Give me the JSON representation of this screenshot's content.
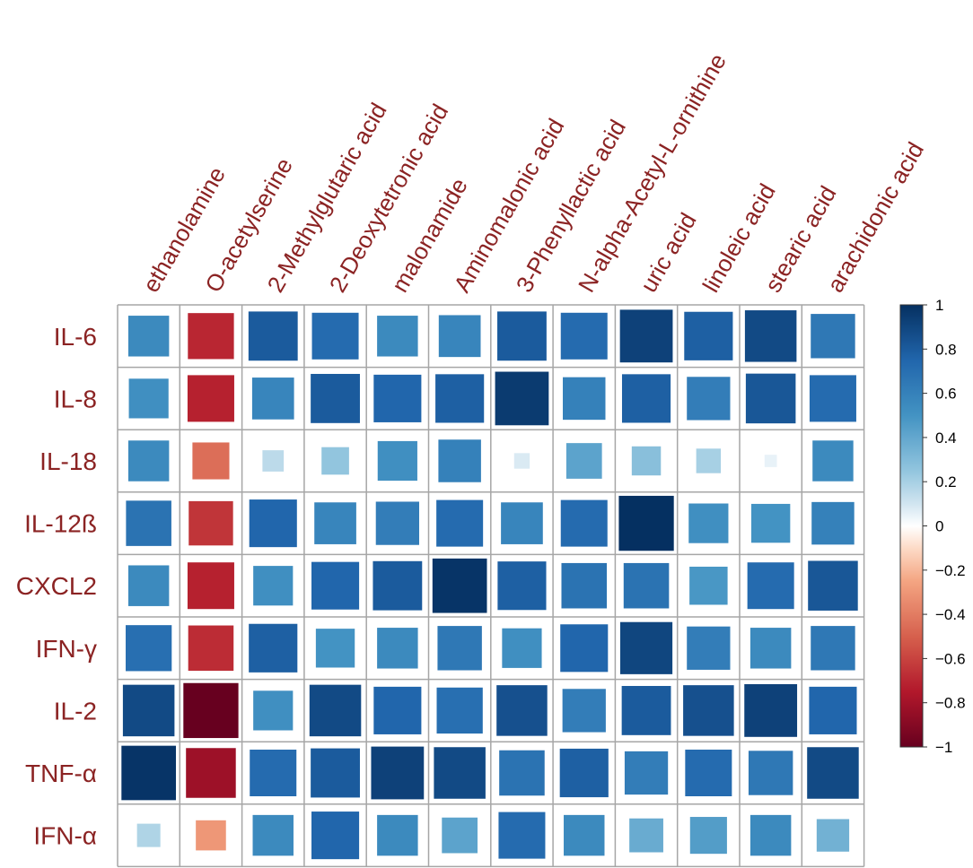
{
  "chart_data": {
    "type": "heatmap",
    "title": "",
    "columns": [
      "ethanolamine",
      "O-acetylserine",
      "2-Methylglutaric acid",
      "2-Deoxytetronic acid",
      "malonamide",
      "Aminomalonic acid",
      "3-Phenyllactic acid",
      "N-alpha-Acetyl-L-ornithine",
      "uric acid",
      "linoleic acid",
      "stearic acid",
      "arachidonic acid"
    ],
    "rows": [
      "IL-6",
      "IL-8",
      "IL-18",
      "IL-12ß",
      "CXCL2",
      "IFN-γ",
      "IL-2",
      "TNF-α",
      "IFN-α"
    ],
    "values": [
      [
        0.55,
        -0.7,
        0.8,
        0.72,
        0.55,
        0.58,
        0.8,
        0.72,
        0.92,
        0.78,
        0.88,
        0.65
      ],
      [
        0.52,
        -0.72,
        0.58,
        0.8,
        0.75,
        0.78,
        0.95,
        0.6,
        0.78,
        0.62,
        0.82,
        0.72
      ],
      [
        0.55,
        -0.45,
        0.15,
        0.25,
        0.52,
        0.6,
        0.08,
        0.42,
        0.28,
        0.2,
        0.05,
        0.55
      ],
      [
        0.68,
        -0.65,
        0.75,
        0.58,
        0.62,
        0.72,
        0.58,
        0.72,
        1.0,
        0.52,
        0.5,
        0.6
      ],
      [
        0.55,
        -0.72,
        0.52,
        0.75,
        0.8,
        0.98,
        0.78,
        0.68,
        0.68,
        0.48,
        0.72,
        0.82
      ],
      [
        0.7,
        -0.68,
        0.78,
        0.5,
        0.55,
        0.65,
        0.52,
        0.75,
        0.9,
        0.62,
        0.55,
        0.65
      ],
      [
        0.88,
        -1.0,
        0.52,
        0.88,
        0.75,
        0.7,
        0.85,
        0.62,
        0.8,
        0.85,
        0.92,
        0.75
      ],
      [
        0.98,
        -0.82,
        0.72,
        0.8,
        0.92,
        0.88,
        0.68,
        0.78,
        0.62,
        0.72,
        0.65,
        0.88
      ],
      [
        0.18,
        -0.3,
        0.55,
        0.75,
        0.55,
        0.42,
        0.72,
        0.55,
        0.38,
        0.45,
        0.55,
        0.35
      ]
    ],
    "colorbar": {
      "range": [
        -1,
        1
      ],
      "ticks": [
        "1",
        "0.8",
        "0.6",
        "0.4",
        "0.2",
        "0",
        "−0.2",
        "−0.4",
        "−0.6",
        "−0.8",
        "−1"
      ],
      "low_color": "#67001f",
      "mid_color": "#ffffff",
      "high_color": "#053061"
    },
    "label_color": "#8b2323",
    "grid_color": "#a6a6a6"
  }
}
